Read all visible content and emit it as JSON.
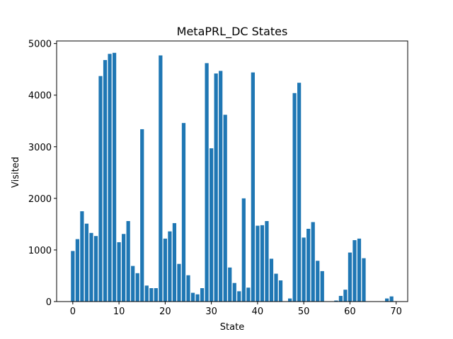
{
  "chart_data": {
    "type": "bar",
    "title": "MetaPRL_DC States",
    "xlabel": "State",
    "ylabel": "Visited",
    "xlim": [
      -3.5,
      72.5
    ],
    "ylim": [
      0,
      5050
    ],
    "xticks": [
      0,
      10,
      20,
      30,
      40,
      50,
      60,
      70
    ],
    "yticks": [
      0,
      1000,
      2000,
      3000,
      4000,
      5000
    ],
    "grid": false,
    "bar_color": "#1f77b4",
    "x": [
      0,
      1,
      2,
      3,
      4,
      5,
      6,
      7,
      8,
      9,
      10,
      11,
      12,
      13,
      14,
      15,
      16,
      17,
      18,
      19,
      20,
      21,
      22,
      23,
      24,
      25,
      26,
      27,
      28,
      29,
      30,
      31,
      32,
      33,
      34,
      35,
      36,
      37,
      38,
      39,
      40,
      41,
      42,
      43,
      44,
      45,
      46,
      47,
      48,
      49,
      50,
      51,
      52,
      53,
      54,
      55,
      56,
      57,
      58,
      59,
      60,
      61,
      62,
      63,
      64,
      65,
      66,
      67,
      68,
      69,
      70
    ],
    "values": [
      980,
      1210,
      1750,
      1510,
      1330,
      1270,
      4370,
      4680,
      4800,
      4820,
      1150,
      1310,
      1560,
      690,
      550,
      3340,
      310,
      260,
      260,
      4770,
      1220,
      1360,
      1520,
      730,
      3460,
      510,
      170,
      140,
      260,
      4620,
      2970,
      4420,
      4470,
      3620,
      660,
      360,
      200,
      2000,
      270,
      4440,
      1470,
      1480,
      1560,
      830,
      540,
      410,
      0,
      60,
      4040,
      4240,
      1240,
      1410,
      1540,
      790,
      590,
      0,
      0,
      20,
      110,
      230,
      950,
      1190,
      1220,
      840,
      0,
      0,
      0,
      0,
      60,
      100,
      0
    ]
  }
}
